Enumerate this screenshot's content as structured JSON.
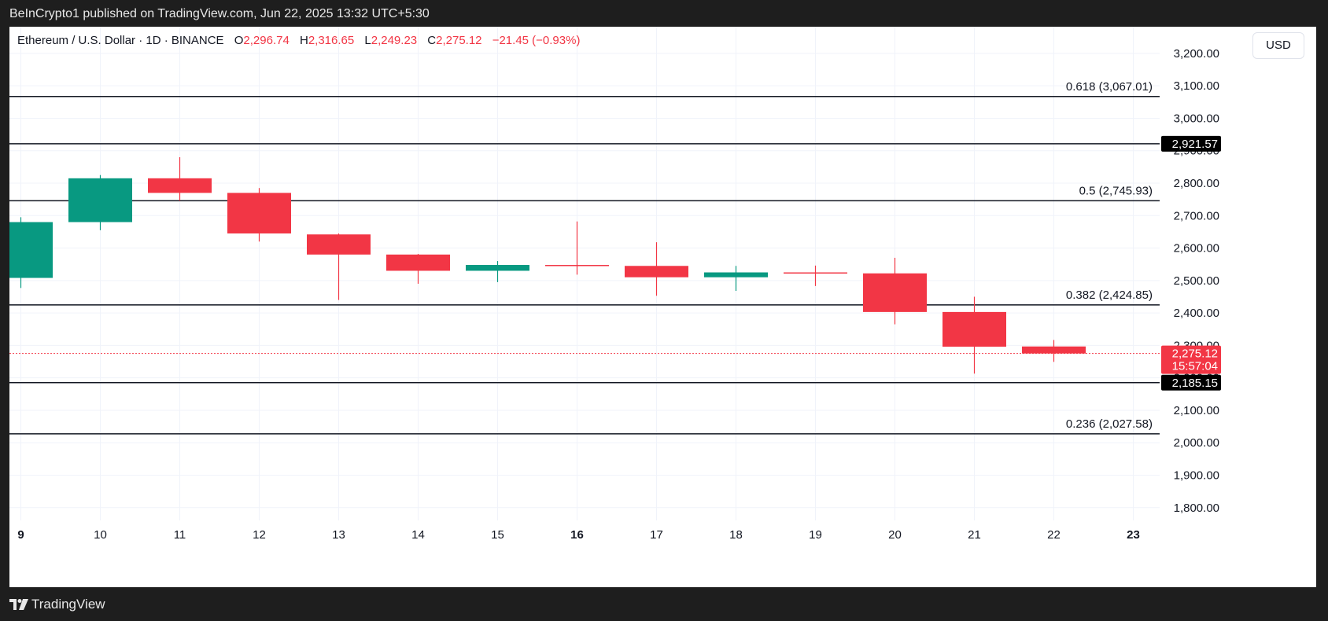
{
  "header": {
    "published": "BeInCrypto1 published on TradingView.com, Jun 22, 2025 13:32 UTC+5:30"
  },
  "legend": {
    "symbol": "Ethereum / U.S. Dollar · 1D · BINANCE",
    "o_label": "O",
    "o_value": "2,296.74",
    "h_label": "H",
    "h_value": "2,316.65",
    "l_label": "L",
    "l_value": "2,249.23",
    "c_label": "C",
    "c_value": "2,275.12",
    "change": "−21.45 (−0.93%)"
  },
  "currency_button": "USD",
  "footer": {
    "brand": "TradingView"
  },
  "colors": {
    "up": "#089981",
    "down": "#f23645",
    "level_line": "#131722",
    "grid": "#f0f3fa"
  },
  "chart_data": {
    "type": "candlestick",
    "symbol": "ETHUSD",
    "exchange": "BINANCE",
    "interval": "1D",
    "ylim": [
      1750,
      3260
    ],
    "y_ticks": [
      1800,
      1900,
      2000,
      2100,
      2200,
      2300,
      2400,
      2500,
      2600,
      2700,
      2800,
      2900,
      3000,
      3100,
      3200
    ],
    "x_ticks": [
      {
        "label": "9",
        "index": 0,
        "bold": true
      },
      {
        "label": "10",
        "index": 1
      },
      {
        "label": "11",
        "index": 2
      },
      {
        "label": "12",
        "index": 3
      },
      {
        "label": "13",
        "index": 4
      },
      {
        "label": "14",
        "index": 5
      },
      {
        "label": "15",
        "index": 6
      },
      {
        "label": "16",
        "index": 7,
        "bold": true
      },
      {
        "label": "17",
        "index": 8
      },
      {
        "label": "18",
        "index": 9
      },
      {
        "label": "19",
        "index": 10
      },
      {
        "label": "20",
        "index": 11
      },
      {
        "label": "21",
        "index": 12
      },
      {
        "label": "22",
        "index": 13
      },
      {
        "label": "23",
        "index": 14,
        "bold": true
      }
    ],
    "candles": [
      {
        "date": "2025-06-09",
        "open": 2508,
        "high": 2695,
        "low": 2477,
        "close": 2680
      },
      {
        "date": "2025-06-10",
        "open": 2680,
        "high": 2825,
        "low": 2655,
        "close": 2815
      },
      {
        "date": "2025-06-11",
        "open": 2815,
        "high": 2880,
        "low": 2746,
        "close": 2770
      },
      {
        "date": "2025-06-12",
        "open": 2770,
        "high": 2785,
        "low": 2620,
        "close": 2645
      },
      {
        "date": "2025-06-13",
        "open": 2642,
        "high": 2645,
        "low": 2440,
        "close": 2580
      },
      {
        "date": "2025-06-14",
        "open": 2580,
        "high": 2582,
        "low": 2490,
        "close": 2530
      },
      {
        "date": "2025-06-15",
        "open": 2530,
        "high": 2560,
        "low": 2495,
        "close": 2548
      },
      {
        "date": "2025-06-16",
        "open": 2548,
        "high": 2682,
        "low": 2518,
        "close": 2545
      },
      {
        "date": "2025-06-17",
        "open": 2545,
        "high": 2618,
        "low": 2453,
        "close": 2510
      },
      {
        "date": "2025-06-18",
        "open": 2510,
        "high": 2545,
        "low": 2468,
        "close": 2525
      },
      {
        "date": "2025-06-19",
        "open": 2525,
        "high": 2546,
        "low": 2483,
        "close": 2522
      },
      {
        "date": "2025-06-20",
        "open": 2522,
        "high": 2570,
        "low": 2365,
        "close": 2403
      },
      {
        "date": "2025-06-21",
        "open": 2403,
        "high": 2450,
        "low": 2213,
        "close": 2296
      },
      {
        "date": "2025-06-22",
        "open": 2296.74,
        "high": 2316.65,
        "low": 2249.23,
        "close": 2275.12
      }
    ],
    "fib_levels": [
      {
        "label": "0.618 (3,067.01)",
        "value": 3067.01
      },
      {
        "label": "0.5 (2,745.93)",
        "value": 2745.93
      },
      {
        "label": "0.382 (2,424.85)",
        "value": 2424.85
      },
      {
        "label": "0.236 (2,027.58)",
        "value": 2027.58
      }
    ],
    "horizontal_levels": [
      {
        "value": 2921.57,
        "label": "2,921.57"
      },
      {
        "value": 2185.15,
        "label": "2,185.15"
      }
    ],
    "last_price": {
      "value": 2275.12,
      "label": "2,275.12",
      "countdown": "15:57:04"
    }
  }
}
